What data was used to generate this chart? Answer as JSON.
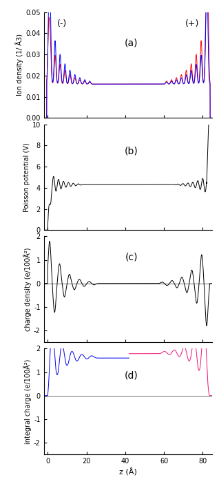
{
  "xlim": [
    -2,
    85
  ],
  "xticks": [
    0,
    20,
    40,
    60,
    80
  ],
  "xlabel": "z (Å)",
  "panel_a": {
    "label": "(a)",
    "ylabel": "Ion density (1/ Å3)",
    "ylim": [
      0.0,
      0.05
    ],
    "yticks": [
      0.0,
      0.01,
      0.02,
      0.03,
      0.04,
      0.05
    ],
    "li_color": "#ff0000",
    "cl_color": "#0000ff",
    "minus_label": "(-)",
    "plus_label": "(+)",
    "bulk_density": 0.016
  },
  "panel_b": {
    "label": "(b)",
    "ylabel": "Poisson potential (V)",
    "ylim": [
      0,
      10
    ],
    "yticks": [
      0,
      2,
      4,
      6,
      8,
      10
    ],
    "color": "#000000",
    "bulk_value": 4.3
  },
  "panel_c": {
    "label": "(c)",
    "ylabel": "charge density (e/100Å²)",
    "ylim": [
      -2.5,
      2
    ],
    "yticks": [
      -2,
      -1,
      0,
      1,
      2
    ],
    "color": "#000000"
  },
  "panel_d": {
    "label": "(d)",
    "ylabel": "integral charge (e/100Å²)",
    "ylim": [
      -2.5,
      2
    ],
    "yticks": [
      -2,
      -1,
      0,
      1,
      2
    ],
    "left_color": "#0000ee",
    "right_color": "#ee1177"
  }
}
